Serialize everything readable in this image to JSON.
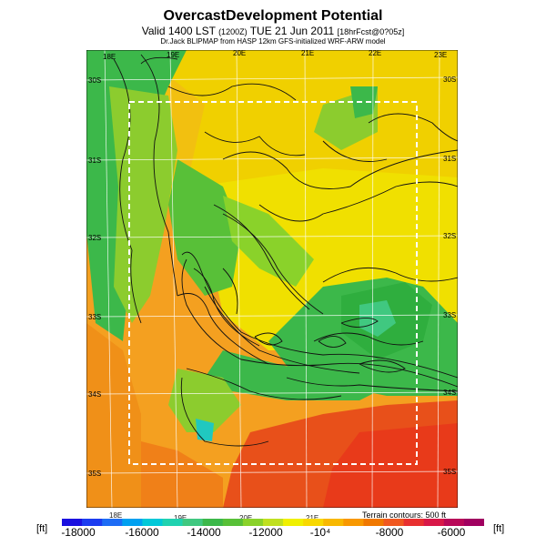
{
  "header": {
    "title": "OvercastDevelopment Potential",
    "valid_prefix": "Valid 1400 LST",
    "valid_utc": "(1200Z)",
    "valid_date": "TUE 21 Jun 2011",
    "valid_suffix": "[18hrFcst@0?05z]",
    "model_line": "Dr.Jack BLIPMAP from HASP 12km GFS-initialized WRF-ARW model"
  },
  "map": {
    "top_lon_labels": [
      "18E",
      "19E",
      "20E",
      "21E",
      "22E",
      "23E"
    ],
    "bottom_lon_labels": [
      "18E",
      "19E",
      "20E",
      "21E"
    ],
    "left_lat_labels": [
      "30S",
      "31S",
      "32S",
      "33S",
      "34S",
      "35S"
    ],
    "right_lat_labels": [
      "30S",
      "31S",
      "32S",
      "33S",
      "34S",
      "35S"
    ]
  },
  "legend": {
    "unit_left": "[ft]",
    "unit_right": "[ft]",
    "tick_labels": [
      "-18000",
      "-16000",
      "-14000",
      "-12000",
      "-10⁴",
      "-8000",
      "-6000"
    ],
    "terrain_note": "Terrain contours: 500 ft",
    "colors": [
      "#1a10e0",
      "#1c3cf0",
      "#1d6cf5",
      "#00a0f0",
      "#00c8d8",
      "#20d2b0",
      "#40c880",
      "#3cb84a",
      "#58c038",
      "#8ad22a",
      "#c0e020",
      "#f0f000",
      "#f8d800",
      "#f8b800",
      "#f89800",
      "#f07800",
      "#f05820",
      "#e83030",
      "#d81848",
      "#b80858",
      "#a00060"
    ]
  },
  "colors": {
    "land_base": "#f5a623",
    "green_dark": "#2fae3e",
    "green_light": "#8ccc2e",
    "yellow": "#e8e000",
    "red": "#e83a1a"
  }
}
